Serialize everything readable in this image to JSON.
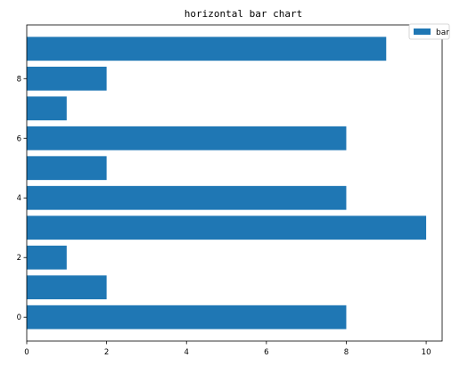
{
  "chart_data": {
    "type": "bar",
    "orientation": "horizontal",
    "title": "horizontal bar chart",
    "xlabel": "",
    "ylabel": "",
    "categories": [
      0,
      1,
      2,
      3,
      4,
      5,
      6,
      7,
      8,
      9
    ],
    "series": [
      {
        "name": "bar",
        "values": [
          8,
          2,
          1,
          10,
          8,
          2,
          8,
          1,
          2,
          9
        ]
      }
    ],
    "xlim": [
      0,
      10.4
    ],
    "ylim": [
      -0.8,
      9.8
    ],
    "xticks": [
      0,
      2,
      4,
      6,
      8,
      10
    ],
    "yticks": [
      0,
      2,
      4,
      6,
      8
    ],
    "grid": false,
    "legend_position": "top-right",
    "colors": {
      "bar": "#1f77b4",
      "axis": "#000000",
      "legend_border": "#cccccc"
    }
  }
}
